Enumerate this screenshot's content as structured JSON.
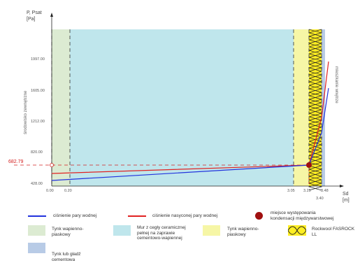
{
  "axis": {
    "y_title_line1": "P, Psat",
    "y_title_line2": "[Pa]",
    "x_title_line1": "Sd",
    "x_title_line2": "[m]",
    "y_ticks": [
      "1997.00",
      "1605.00",
      "1212.00",
      "820.00",
      "428.00"
    ],
    "x_ticks": [
      "0.00",
      "0.20",
      "3.05",
      "3.25",
      "3.48"
    ],
    "x_extra_tick": "3.40",
    "condensation_value": "682.79"
  },
  "side_labels": {
    "left": "środowisko zewnętrzne",
    "right": "mieszkanie wnętrze"
  },
  "legend": {
    "vapour_pressure": "ciśnienie pary wodnej",
    "saturated_pressure": "ciśnienie nasyconej pary wodnej",
    "condensation_point_line1": "miejsce występowania",
    "condensation_point_line2": "kondensacji międzywarstwowej",
    "layer1_line1": "Tynk wapienno-",
    "layer1_line2": "piaskowy",
    "layer2_line1": "Mur z cegły ceramicznej",
    "layer2_line2": "pełnej na zaprawie",
    "layer2_line3": "cementowo-wapiennej",
    "layer3_line1": "Tynk wapienno-",
    "layer3_line2": "piaskowy",
    "layer4_line1": "Rockwool FASROCK",
    "layer4_line2": "LL",
    "layer5_line1": "Tynk lub gładź",
    "layer5_line2": "cementowa"
  },
  "colors": {
    "plaster": "#dcebd2",
    "brick": "#bfe6ec",
    "plaster_yellow": "#f6f6a6",
    "insulation": "#ffee22",
    "finish": "#b8cbe6",
    "vapour_line": "#2233dd",
    "saturated_line": "#e02222",
    "condensation_dot": "#a01010",
    "condensation_guide": "#d42020"
  },
  "chart_data": {
    "type": "line",
    "xlabel": "Sd [m]",
    "ylabel": "P, Psat [Pa]",
    "x_ticks": [
      0.0,
      0.2,
      3.05,
      3.25,
      3.4,
      3.48
    ],
    "y_ticks": [
      428.0,
      820.0,
      1212.0,
      1605.0,
      1997.0
    ],
    "series": [
      {
        "name": "ciśnienie pary wodnej",
        "points": [
          [
            0.0,
            444
          ],
          [
            3.25,
            682.79
          ],
          [
            3.48,
            1610
          ]
        ]
      },
      {
        "name": "ciśnienie nasyconej pary wodnej",
        "points": [
          [
            0.0,
            548
          ],
          [
            3.25,
            682.79
          ],
          [
            3.48,
            2220
          ]
        ]
      }
    ],
    "condensation_point": {
      "x": 3.25,
      "y": 682.79
    }
  }
}
